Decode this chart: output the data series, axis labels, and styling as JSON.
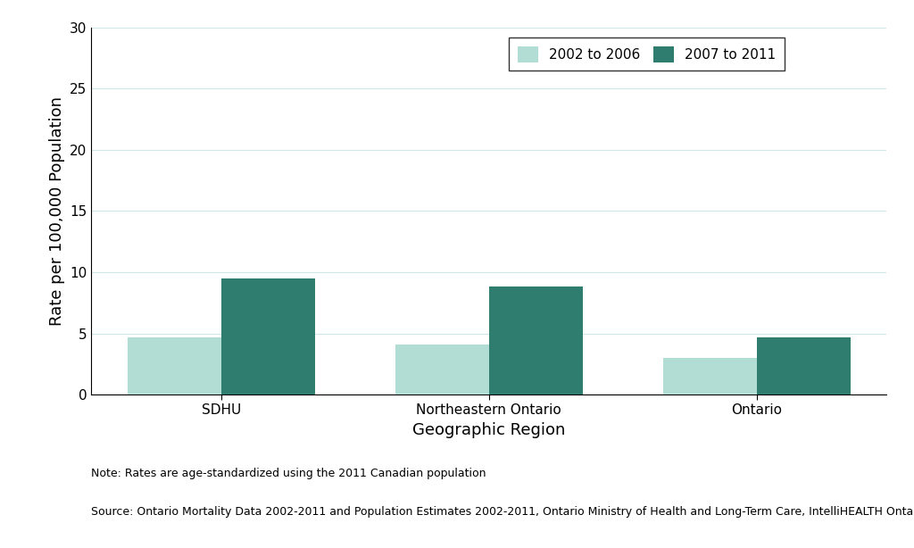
{
  "categories": [
    "SDHU",
    "Northeastern Ontario",
    "Ontario"
  ],
  "series_2002_2006": [
    4.7,
    4.1,
    3.0
  ],
  "series_2007_2011": [
    9.5,
    8.8,
    4.7
  ],
  "color_2002_2006": "#b2ddd4",
  "color_2007_2011": "#2e7d6e",
  "ylabel": "Rate per 100,000 Population",
  "xlabel": "Geographic Region",
  "ylim": [
    0,
    30
  ],
  "yticks": [
    0,
    5,
    10,
    15,
    20,
    25,
    30
  ],
  "legend_labels": [
    "2002 to 2006",
    "2007 to 2011"
  ],
  "note_line1": "Note: Rates are age-standardized using the 2011 Canadian population",
  "note_line2": "Source: Ontario Mortality Data 2002-2011 and Population Estimates 2002-2011, Ontario Ministry of Health and Long-Term Care, IntelliHEALTH Ontario",
  "background_color": "#ffffff",
  "grid_color": "#cce8e8",
  "bar_width": 0.35,
  "axis_label_fontsize": 13,
  "tick_fontsize": 11,
  "legend_fontsize": 11,
  "note_fontsize": 9
}
